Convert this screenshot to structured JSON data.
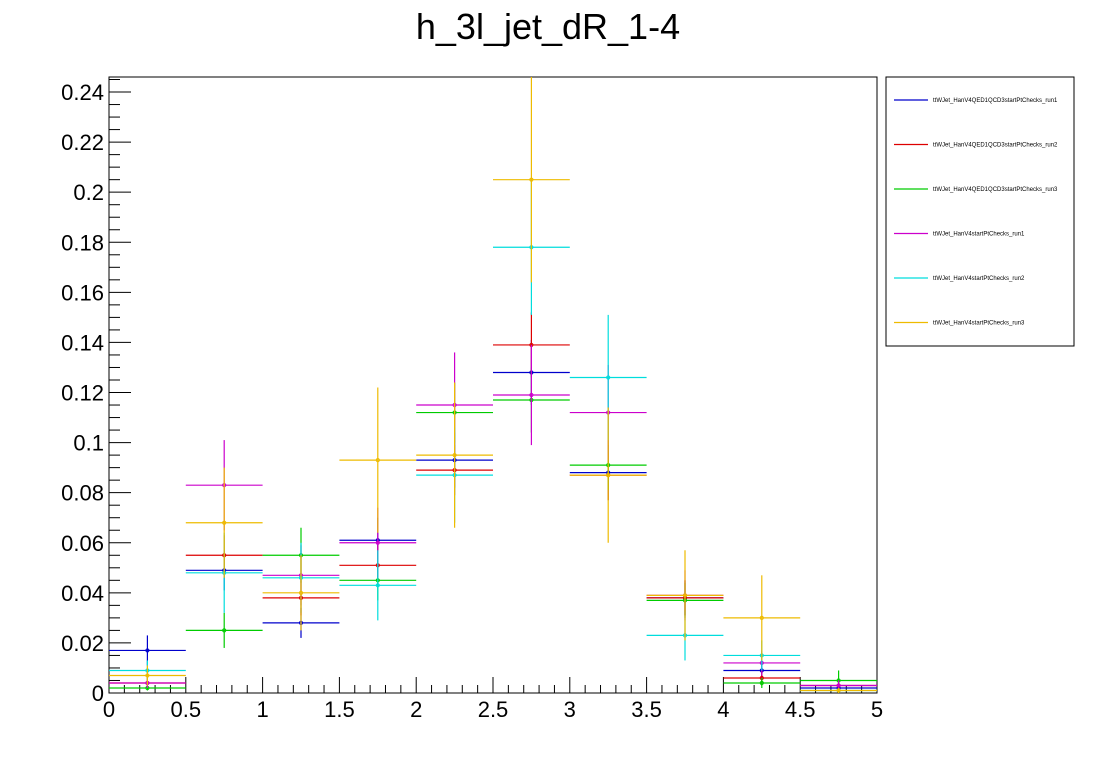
{
  "chart_data": {
    "type": "histogram-errorbars",
    "title": "h_3l_jet_dR_1-4",
    "xlim": [
      0,
      5
    ],
    "ylim": [
      0,
      0.246
    ],
    "x_ticks": [
      0,
      0.5,
      1,
      1.5,
      2,
      2.5,
      3,
      3.5,
      4,
      4.5,
      5
    ],
    "x_tick_labels": [
      "0",
      "0.5",
      "1",
      "1.5",
      "2",
      "2.5",
      "3",
      "3.5",
      "4",
      "4.5",
      "5"
    ],
    "y_ticks": [
      0,
      0.02,
      0.04,
      0.06,
      0.08,
      0.1,
      0.12,
      0.14,
      0.16,
      0.18,
      0.2,
      0.22,
      0.24
    ],
    "y_tick_labels": [
      "0",
      "0.02",
      "0.04",
      "0.06",
      "0.08",
      "0.1",
      "0.12",
      "0.14",
      "0.16",
      "0.18",
      "0.2",
      "0.22",
      "0.24"
    ],
    "bin_edges": [
      0,
      0.5,
      1,
      1.5,
      2,
      2.5,
      3,
      3.5,
      4,
      4.5,
      5
    ],
    "legend_position": "right",
    "series": [
      {
        "name": "ttWJet_HanV4QED1QCD3startPtChecks_run1",
        "color": "#0000cc",
        "values": [
          0.017,
          0.049,
          0.028,
          0.061,
          0.093,
          0.128,
          0.088,
          0.038,
          0.009,
          0.002
        ],
        "errors": [
          0.006,
          0.008,
          0.006,
          0.009,
          0.011,
          0.013,
          0.011,
          0.007,
          0.003,
          0.001
        ]
      },
      {
        "name": "ttWJet_HanV4QED1QCD3startPtChecks_run2",
        "color": "#dd0000",
        "values": [
          0.004,
          0.055,
          0.038,
          0.051,
          0.089,
          0.139,
          0.087,
          0.038,
          0.006,
          0.003
        ],
        "errors": [
          0.002,
          0.008,
          0.007,
          0.008,
          0.01,
          0.013,
          0.01,
          0.007,
          0.003,
          0.001
        ]
      },
      {
        "name": "ttWJet_HanV4QED1QCD3startPtChecks_run3",
        "color": "#00cc00",
        "values": [
          0.002,
          0.025,
          0.055,
          0.045,
          0.112,
          0.117,
          0.091,
          0.037,
          0.004,
          0.005
        ],
        "errors": [
          0.001,
          0.007,
          0.011,
          0.008,
          0.012,
          0.013,
          0.01,
          0.007,
          0.002,
          0.004
        ]
      },
      {
        "name": "ttWJet_HanV4startPtChecks_run1",
        "color": "#cc00cc",
        "values": [
          0.004,
          0.083,
          0.047,
          0.06,
          0.115,
          0.119,
          0.112,
          0.039,
          0.012,
          0.003
        ],
        "errors": [
          0.002,
          0.018,
          0.012,
          0.014,
          0.021,
          0.02,
          0.019,
          0.01,
          0.005,
          0.002
        ]
      },
      {
        "name": "ttWJet_HanV4startPtChecks_run2",
        "color": "#00dddd",
        "values": [
          0.009,
          0.048,
          0.046,
          0.043,
          0.087,
          0.178,
          0.126,
          0.023,
          0.015,
          0.001
        ],
        "errors": [
          0.004,
          0.016,
          0.014,
          0.014,
          0.019,
          0.027,
          0.025,
          0.01,
          0.006,
          0.001
        ]
      },
      {
        "name": "ttWJet_HanV4startPtChecks_run3",
        "color": "#eebb00",
        "values": [
          0.007,
          0.068,
          0.04,
          0.093,
          0.095,
          0.205,
          0.087,
          0.039,
          0.03,
          0.001
        ],
        "errors": [
          0.004,
          0.022,
          0.015,
          0.029,
          0.029,
          0.041,
          0.027,
          0.018,
          0.017,
          0.001
        ]
      }
    ]
  }
}
